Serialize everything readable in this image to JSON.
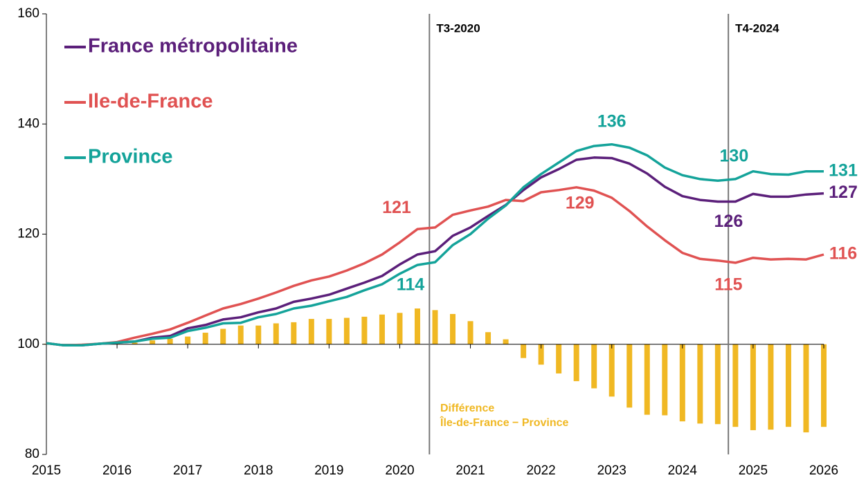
{
  "chart_data": {
    "type": "line",
    "x": [
      2015,
      2015.25,
      2015.5,
      2015.75,
      2016,
      2016.25,
      2016.5,
      2016.75,
      2017,
      2017.25,
      2017.5,
      2017.75,
      2018,
      2018.25,
      2018.5,
      2018.75,
      2019,
      2019.25,
      2019.5,
      2019.75,
      2020,
      2020.25,
      2020.5,
      2020.75,
      2021,
      2021.25,
      2021.5,
      2021.75,
      2022,
      2022.25,
      2022.5,
      2022.75,
      2023,
      2023.25,
      2023.5,
      2023.75,
      2024,
      2024.25,
      2024.5,
      2024.75,
      2025,
      2025.25,
      2025.5,
      2025.75,
      2026
    ],
    "series": [
      {
        "name": "France métropolitaine",
        "color": "#5b1f7a",
        "values": [
          100.2,
          99.8,
          99.8,
          100.1,
          100.3,
          100.5,
          101.2,
          101.5,
          102.9,
          103.5,
          104.5,
          104.9,
          105.8,
          106.5,
          107.7,
          108.3,
          109.0,
          110.1,
          111.2,
          112.4,
          114.5,
          116.3,
          116.9,
          119.7,
          121.2,
          123.3,
          125.3,
          128.0,
          130.3,
          131.8,
          133.5,
          133.9,
          133.8,
          132.8,
          131.0,
          128.6,
          126.9,
          126.2,
          125.9,
          125.9,
          127.3,
          126.8,
          126.8,
          127.2,
          127.4
        ]
      },
      {
        "name": "Ile-de-France",
        "color": "#e05252",
        "values": [
          100.2,
          99.8,
          99.9,
          100.1,
          100.4,
          101.2,
          101.9,
          102.7,
          103.9,
          105.2,
          106.5,
          107.3,
          108.3,
          109.4,
          110.6,
          111.6,
          112.3,
          113.4,
          114.7,
          116.3,
          118.5,
          120.9,
          121.2,
          123.5,
          124.3,
          125.0,
          126.2,
          126.0,
          127.6,
          128.0,
          128.5,
          127.9,
          126.6,
          124.2,
          121.4,
          118.9,
          116.6,
          115.5,
          115.2,
          114.8,
          115.7,
          115.4,
          115.5,
          115.4,
          116.3
        ]
      },
      {
        "name": "Province",
        "color": "#14a39a",
        "values": [
          100.2,
          99.8,
          99.8,
          100.1,
          100.3,
          100.5,
          101.0,
          101.2,
          102.4,
          103.0,
          103.8,
          103.9,
          104.9,
          105.5,
          106.5,
          107.0,
          107.8,
          108.6,
          109.8,
          110.9,
          112.8,
          114.4,
          114.9,
          118.0,
          120.0,
          122.8,
          125.2,
          128.5,
          130.9,
          133.0,
          135.1,
          136.0,
          136.3,
          135.7,
          134.3,
          132.1,
          130.7,
          130.0,
          129.7,
          130.0,
          131.4,
          130.9,
          130.8,
          131.4,
          131.4
        ]
      }
    ],
    "bars": {
      "color": "#f0b823",
      "base": 100,
      "label_lines": [
        "Différence",
        "Île-de-France − Province"
      ],
      "values": [
        100.1,
        100.0,
        100.1,
        100.0,
        100.1,
        100.3,
        100.7,
        101.0,
        101.4,
        102.1,
        102.8,
        103.4,
        103.4,
        103.8,
        104.0,
        104.6,
        104.6,
        104.8,
        105.0,
        105.4,
        105.7,
        106.5,
        106.2,
        105.5,
        104.2,
        102.2,
        100.9,
        97.5,
        96.3,
        94.7,
        93.3,
        92.0,
        90.5,
        88.5,
        87.2,
        87.1,
        86.0,
        85.6,
        85.5,
        85.0,
        84.4,
        84.5,
        85.0,
        84.0,
        85.0
      ]
    },
    "vlines": [
      {
        "x": 2020.42,
        "label": "T3-2020"
      },
      {
        "x": 2024.65,
        "label": "T4-2024"
      }
    ],
    "annotations": [
      {
        "text": "121",
        "series": 1,
        "index": 21
      },
      {
        "text": "114",
        "series": 2,
        "index": 21
      },
      {
        "text": "136",
        "series": 2,
        "index": 32
      },
      {
        "text": "129",
        "series": 1,
        "index": 30
      },
      {
        "text": "130",
        "series": 2,
        "index": 39
      },
      {
        "text": "126",
        "series": 0,
        "index": 39
      },
      {
        "text": "115",
        "series": 1,
        "index": 39
      },
      {
        "text": "131",
        "series": 2,
        "index": 44
      },
      {
        "text": "127",
        "series": 0,
        "index": 44
      },
      {
        "text": "116",
        "series": 1,
        "index": 44
      }
    ],
    "xlim": [
      2015,
      2026
    ],
    "xticks": [
      2015,
      2016,
      2017,
      2018,
      2019,
      2020,
      2021,
      2022,
      2023,
      2024,
      2025,
      2026
    ],
    "ylim": [
      80,
      160
    ],
    "yticks": [
      80,
      100,
      120,
      140,
      160
    ],
    "grid": false,
    "legend": "top-left"
  }
}
